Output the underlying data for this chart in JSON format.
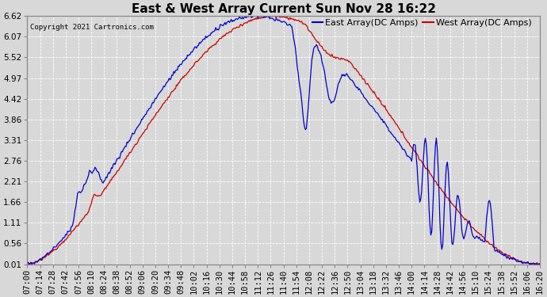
{
  "title": "East & West Array Current Sun Nov 28 16:22",
  "copyright": "Copyright 2021 Cartronics.com",
  "legend_east": "East Array(DC Amps)",
  "legend_west": "West Array(DC Amps)",
  "east_color": "#0000CC",
  "west_color": "#CC0000",
  "ylim": [
    0.0,
    6.62
  ],
  "yticks": [
    0.01,
    0.56,
    1.11,
    1.66,
    2.21,
    2.76,
    3.31,
    3.86,
    4.42,
    4.97,
    5.52,
    6.07,
    6.62
  ],
  "background_color": "#D8D8D8",
  "plot_bg_color": "#D8D8D8",
  "grid_color": "#FFFFFF",
  "title_fontsize": 11,
  "label_fontsize": 7.5,
  "tick_interval_min": 14
}
